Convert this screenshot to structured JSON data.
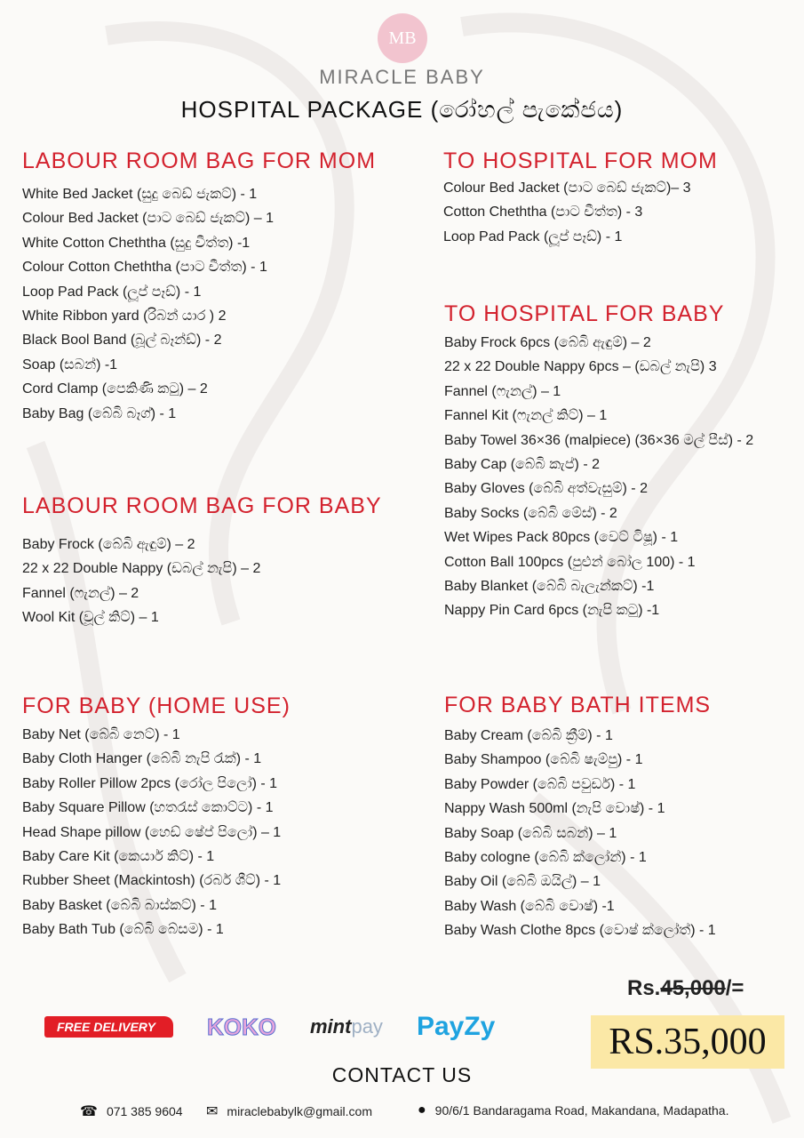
{
  "header": {
    "logo": "MB",
    "brand": "MIRACLE BABY",
    "title": "HOSPITAL PACKAGE (රෝහල් පැකේජය)"
  },
  "sections": [
    {
      "title": "LABOUR ROOM BAG FOR MOM",
      "items": [
        "White Bed Jacket (සුදු බෙඩ් ජැකට්) - 1",
        "Colour Bed Jacket (පාට බෙඩ් ජැකට්) – 1",
        "White Cotton Cheththa (සුදු චීත්ත) -1",
        "Colour Cotton Cheththa (පාට චීත්ත) - 1",
        "Loop Pad Pack (ලූප් පෑඩ්) - 1",
        "White Ribbon yard (රිබන් යාර ) 2",
        "Black Bool Band (බූල් බෑන්ඩ්) - 2",
        "Soap (සබන්) -1",
        "Cord Clamp (පෙකිණි කටු) – 2",
        "Baby Bag (බේබි බෑග්) - 1"
      ]
    },
    {
      "title": "LABOUR ROOM BAG FOR BABY",
      "items": [
        "Baby Frock (බේබි ඇඳුම්) – 2",
        "22 x 22 Double Nappy (ඩබල් නැපි) – 2",
        "Fannel (ෆැනල්) – 2",
        "Wool Kit (වූල් කිට්) – 1"
      ]
    },
    {
      "title": "FOR BABY (HOME USE)",
      "items": [
        "Baby Net (බේබි නෙට්) - 1",
        "Baby Cloth Hanger (බේබි නැපි රැක්) - 1",
        "Baby Roller Pillow 2pcs (රෝල පිලෝ) - 1",
        "Baby Square Pillow (හතරැස් කොට්ට) - 1",
        "Head Shape pillow (හෙඩ් ෂේප් පිලෝ) – 1",
        "Baby Care Kit (කෙයාර් කිට්) - 1",
        "Rubber Sheet (Mackintosh) (රබර් ශීට්) - 1",
        "Baby Basket (බේබි බාස්කට්) - 1",
        "Baby Bath Tub (බේබි බේසම) - 1"
      ]
    },
    {
      "title": "TO HOSPITAL FOR MOM",
      "items": [
        "Colour Bed Jacket (පාට බෙඩ් ජැකට්)– 3",
        "Cotton Cheththa (පාට චීත්ත)  - 3",
        "Loop Pad Pack (ලූප් පෑඩ්) - 1"
      ]
    },
    {
      "title": "TO HOSPITAL FOR BABY",
      "items": [
        "Baby Frock 6pcs (බේබි ඇඳුම්) – 2",
        "22 x 22 Double Nappy 6pcs – (ඩබල් නැපි) 3",
        "Fannel (ෆැනල්) – 1",
        "Fannel Kit (ෆැනල් කිට්) – 1",
        "Baby Towel 36×36 (malpiece) (36×36 මල් පීස්) - 2",
        "Baby Cap (බේබි කැප්) - 2",
        "Baby Gloves (බේබි අත්වැසුම්) - 2",
        "Baby Socks (බේබි මේස්) - 2",
        "Wet Wipes Pack 80pcs (වෙට් ටිෂූ) - 1",
        "Cotton Ball 100pcs (පුළුන් බෝල 100) - 1",
        "Baby Blanket (බේබි බැලැන්කට්)  -1",
        "Nappy Pin Card 6pcs (නැපි කටු)  -1"
      ]
    },
    {
      "title": "FOR BABY BATH ITEMS",
      "items": [
        "Baby Cream (බේබි ක්‍රීම්) - 1",
        "Baby Shampoo (බේබි  ෂැම්පු) - 1",
        "Baby Powder (බේබි පවුඩර්) - 1",
        "Nappy Wash 500ml (නැපි වොෂ්) - 1",
        "Baby Soap (බේබි සබන්) – 1",
        "Baby cologne (බේබි ක්ලෝන්) - 1",
        "Baby Oil (බේබි ඔයිල්) – 1",
        "Baby Wash (බේබි වොෂ්) -1",
        "Baby Wash Clothe 8pcs (වොෂ් ක්ලෝත්) - 1"
      ]
    }
  ],
  "payments": {
    "free_delivery": "FREE DELIVERY",
    "koko": "KOKO",
    "mintpay_a": "mint",
    "mintpay_b": "pay",
    "payzy": "PayZy"
  },
  "pricing": {
    "old_prefix": "Rs.",
    "old_struck": "45,000",
    "old_suffix": "/=",
    "new": "RS.35,000"
  },
  "contact": {
    "heading": "CONTACT US",
    "phone": "071 385 9604",
    "email": "miraclebabylk@gmail.com",
    "address": "90/6/1 Bandaragama Road, Makandana, Madapatha."
  },
  "colors": {
    "accent": "#d3222e",
    "price_highlight": "#fbe8a6",
    "logo": "#f2c4cf"
  }
}
